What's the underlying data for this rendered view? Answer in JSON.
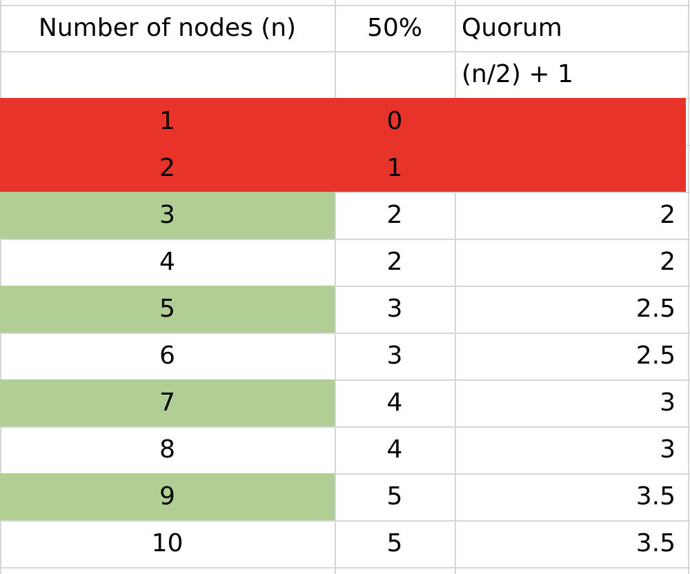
{
  "headers": {
    "col_a": "Number of nodes (n)",
    "col_b": "50%",
    "col_c_line1": "Quorum",
    "col_c_line2": "(n/2) + 1"
  },
  "rows": [
    {
      "n": "1",
      "half": "0",
      "quorum": "",
      "fill": "red"
    },
    {
      "n": "2",
      "half": "1",
      "quorum": "",
      "fill": "red"
    },
    {
      "n": "3",
      "half": "2",
      "quorum": "2",
      "fill": "green"
    },
    {
      "n": "4",
      "half": "2",
      "quorum": "2",
      "fill": "none"
    },
    {
      "n": "5",
      "half": "3",
      "quorum": "2.5",
      "fill": "green"
    },
    {
      "n": "6",
      "half": "3",
      "quorum": "2.5",
      "fill": "none"
    },
    {
      "n": "7",
      "half": "4",
      "quorum": "3",
      "fill": "green"
    },
    {
      "n": "8",
      "half": "4",
      "quorum": "3",
      "fill": "none"
    },
    {
      "n": "9",
      "half": "5",
      "quorum": "3.5",
      "fill": "green"
    },
    {
      "n": "10",
      "half": "5",
      "quorum": "3.5",
      "fill": "none"
    }
  ],
  "colors": {
    "red": "#e8332a",
    "green": "#b1cf95",
    "gridline": "#d6d6d6"
  }
}
